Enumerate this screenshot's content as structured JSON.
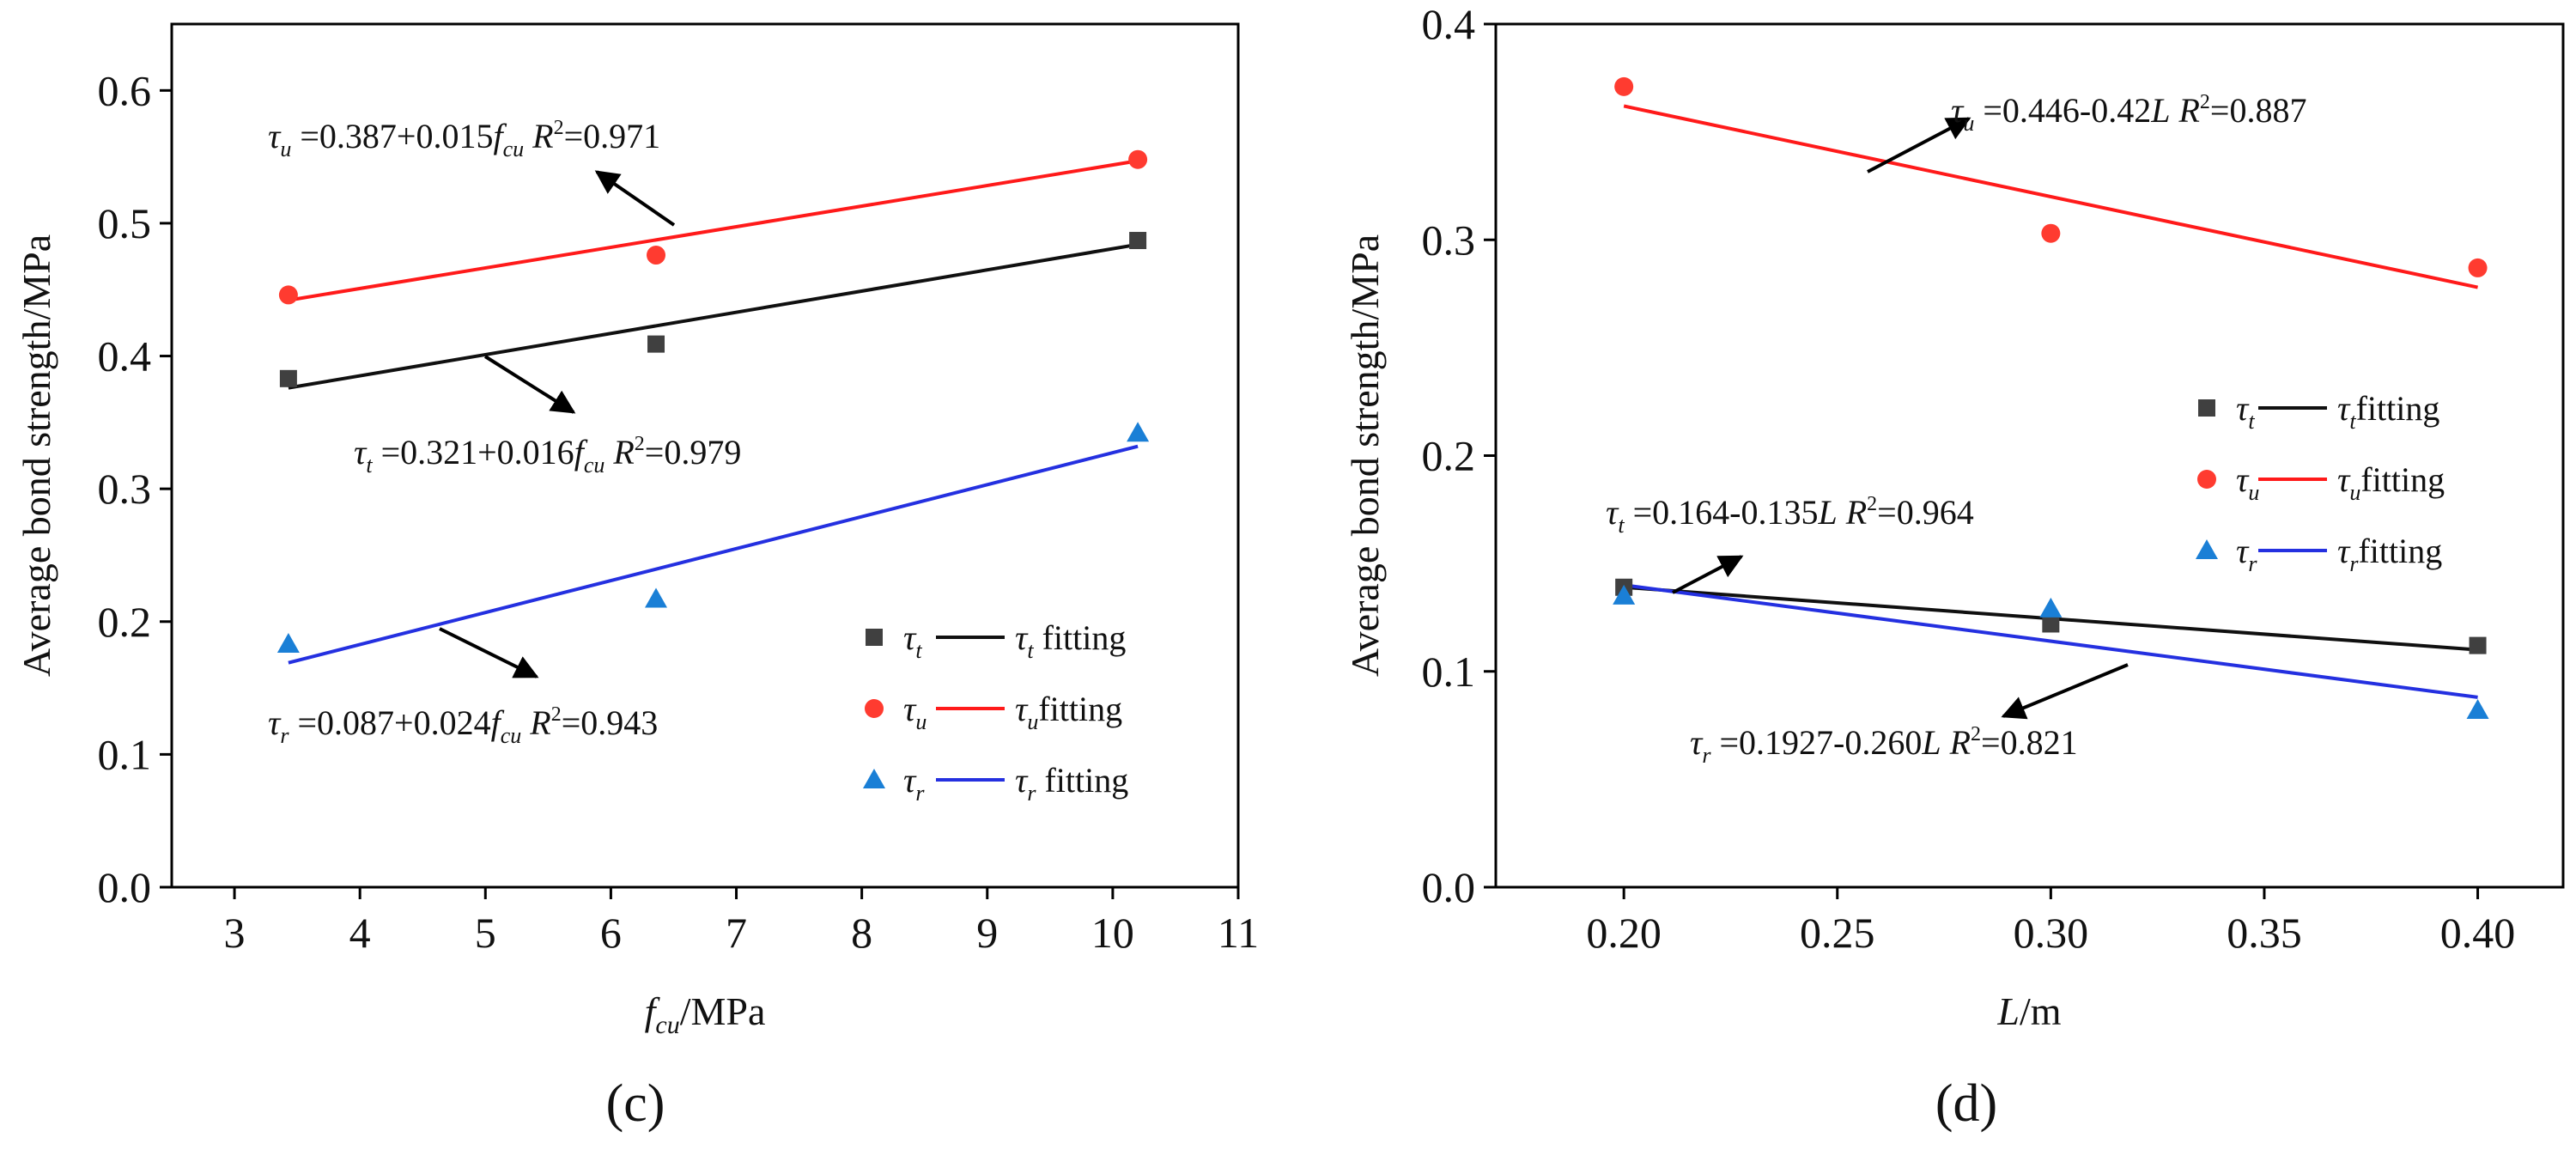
{
  "colors": {
    "t": "#404040",
    "u": "#ff3b30",
    "r": "#1a7fd6",
    "r_line": "#2430e0",
    "u_line": "#ff1a1a",
    "t_line": "#101010"
  },
  "chart_data": [
    {
      "id": "c",
      "type": "scatter",
      "panel_label": "(c)",
      "xlabel": {
        "main": "f",
        "sub": "cu",
        "tail": "/MPa"
      },
      "ylabel": "Average bond strength/MPa",
      "xlim": [
        2.5,
        11
      ],
      "ylim": [
        0,
        0.65
      ],
      "xticks": [
        "3",
        "4",
        "5",
        "6",
        "7",
        "8",
        "9",
        "10",
        "11"
      ],
      "yticks": [
        "0.0",
        "0.1",
        "0.2",
        "0.3",
        "0.4",
        "0.5",
        "0.6"
      ],
      "series": [
        {
          "key": "t",
          "marker": "square",
          "x": [
            3.43,
            6.36,
            10.2
          ],
          "y": [
            0.383,
            0.409,
            0.487
          ],
          "fit": {
            "x": [
              3.43,
              10.2
            ],
            "y": [
              0.376,
              0.484
            ]
          }
        },
        {
          "key": "u",
          "marker": "circle",
          "x": [
            3.43,
            6.36,
            10.2
          ],
          "y": [
            0.446,
            0.476,
            0.548
          ],
          "fit": {
            "x": [
              3.43,
              10.2
            ],
            "y": [
              0.442,
              0.547
            ]
          }
        },
        {
          "key": "r",
          "marker": "triangle",
          "x": [
            3.43,
            6.36,
            10.2
          ],
          "y": [
            0.183,
            0.217,
            0.342
          ],
          "fit": {
            "x": [
              3.43,
              10.2
            ],
            "y": [
              0.169,
              0.332
            ]
          }
        }
      ],
      "legend": [
        {
          "key": "t",
          "sub": "t",
          "fit_label": " fitting"
        },
        {
          "key": "u",
          "sub": "u",
          "fit_label": "fitting"
        },
        {
          "key": "r",
          "sub": "r",
          "fit_label": " fitting"
        }
      ],
      "equations": [
        {
          "sym": "τ",
          "sub": "u",
          "body": " =0.387+0.015",
          "f": "f",
          "fsub": "cu",
          "r2": "=0.971"
        },
        {
          "sym": "τ",
          "sub": "t",
          "body": " =0.321+0.016",
          "f": "f",
          "fsub": "cu",
          "r2": "=0.979"
        },
        {
          "sym": "τ",
          "sub": "r",
          "body": " =0.087+0.024",
          "f": "f",
          "fsub": "cu",
          "r2": "=0.943"
        }
      ]
    },
    {
      "id": "d",
      "type": "scatter",
      "panel_label": "(d)",
      "xlabel": {
        "main": "L",
        "sub": "",
        "tail": "/m"
      },
      "ylabel": "Average bond strength/MPa",
      "xlim": [
        0.17,
        0.42
      ],
      "ylim": [
        0,
        0.4
      ],
      "xticks": [
        "0.20",
        "0.25",
        "0.30",
        "0.35",
        "0.40"
      ],
      "yticks": [
        "0.0",
        "0.1",
        "0.2",
        "0.3",
        "0.4"
      ],
      "series": [
        {
          "key": "t",
          "marker": "square",
          "x": [
            0.2,
            0.3,
            0.4
          ],
          "y": [
            0.139,
            0.122,
            0.112
          ],
          "fit": {
            "x": [
              0.2,
              0.4
            ],
            "y": [
              0.139,
              0.11
            ]
          }
        },
        {
          "key": "u",
          "marker": "circle",
          "x": [
            0.2,
            0.3,
            0.4
          ],
          "y": [
            0.371,
            0.303,
            0.287
          ],
          "fit": {
            "x": [
              0.2,
              0.4
            ],
            "y": [
              0.362,
              0.278
            ]
          }
        },
        {
          "key": "r",
          "marker": "triangle",
          "x": [
            0.2,
            0.3,
            0.4
          ],
          "y": [
            0.135,
            0.129,
            0.082
          ],
          "fit": {
            "x": [
              0.2,
              0.4
            ],
            "y": [
              0.14,
              0.088
            ]
          }
        }
      ],
      "legend": [
        {
          "key": "t",
          "sub": "t",
          "fit_label": "fitting"
        },
        {
          "key": "u",
          "sub": "u",
          "fit_label": "fitting"
        },
        {
          "key": "r",
          "sub": "r",
          "fit_label": "fitting"
        }
      ],
      "equations": [
        {
          "sym": "τ",
          "sub": "u",
          "body": " =0.446-0.42",
          "f": "L",
          "fsub": "",
          "r2": "=0.887"
        },
        {
          "sym": "τ",
          "sub": "t",
          "body": " =0.164-0.135",
          "f": "L",
          "fsub": "",
          "r2": "=0.964"
        },
        {
          "sym": "τ",
          "sub": "r",
          "body": " =0.1927-0.260",
          "f": "L",
          "fsub": "",
          "r2": "=0.821"
        }
      ]
    }
  ]
}
